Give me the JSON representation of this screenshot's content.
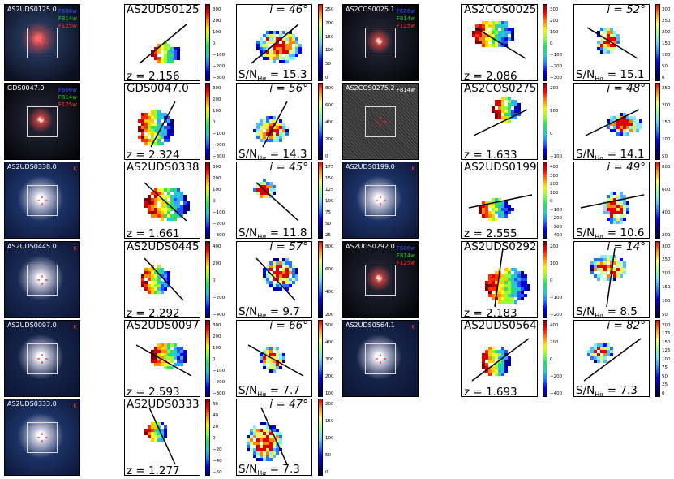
{
  "left_block": [
    {
      "id": "AS2UDS0125.0",
      "z": "z = 2.156",
      "incl": "i = 46°",
      "sn_label": "S/N",
      "sn_sub": "Hα",
      "sn_val": " = 15.3",
      "filters": [
        {
          "text": "F606w",
          "color": "#3355ff"
        },
        {
          "text": "F814w",
          "color": "#22cc22"
        },
        {
          "text": "F125w",
          "color": "#ff3333"
        }
      ],
      "vticks": [
        "300",
        "200",
        "100",
        "0",
        "−100",
        "−200",
        "−300"
      ],
      "sticks": [
        "250",
        "200",
        "150",
        "100",
        "50",
        "0"
      ]
    },
    {
      "id": "GDS0047.0",
      "z": "z = 2.324",
      "incl": "i = 56°",
      "sn_label": "S/N",
      "sn_sub": "Hα",
      "sn_val": " = 14.3",
      "filters": [
        {
          "text": "F606w",
          "color": "#3355ff"
        },
        {
          "text": "F814w",
          "color": "#22cc22"
        },
        {
          "text": "F125w",
          "color": "#ff3333"
        }
      ],
      "vticks": [
        "300",
        "200",
        "100",
        "0",
        "−100",
        "−200",
        "−300"
      ],
      "sticks": [
        "800",
        "600",
        "400",
        "200",
        "0"
      ]
    },
    {
      "id": "AS2UDS0338.0",
      "z": "z = 1.661",
      "incl": "i = 45°",
      "sn_label": "S/N",
      "sn_sub": "Hα",
      "sn_val": " = 11.8",
      "filters": [
        {
          "text": "K",
          "color": "#ff3333"
        }
      ],
      "vticks": [
        "300",
        "200",
        "100",
        "0",
        "−100",
        "−200",
        "−300"
      ],
      "sticks": [
        "175",
        "150",
        "125",
        "100",
        "75",
        "50",
        "25"
      ]
    },
    {
      "id": "AS2UDS0445.0",
      "z": "z = 2.292",
      "incl": "i = 57°",
      "sn_label": "S/N",
      "sn_sub": "Hα",
      "sn_val": " = 9.7",
      "filters": [
        {
          "text": "K",
          "color": "#ff3333"
        }
      ],
      "vticks": [
        "400",
        "200",
        "0",
        "−200",
        "−400"
      ],
      "sticks": [
        "800",
        "600",
        "400",
        "200"
      ]
    },
    {
      "id": "AS2UDS0097.0",
      "z": "z = 2.593",
      "incl": "i = 66°",
      "sn_label": "S/N",
      "sn_sub": "Hα",
      "sn_val": " = 7.7",
      "filters": [
        {
          "text": "K",
          "color": "#ff3333"
        }
      ],
      "vticks": [
        "300",
        "200",
        "100",
        "0",
        "−100",
        "−200",
        "−300"
      ],
      "sticks": [
        "500",
        "400",
        "300",
        "200",
        "100"
      ]
    },
    {
      "id": "AS2UDS0333.0",
      "z": "z = 1.277",
      "incl": "i = 47°",
      "sn_label": "S/N",
      "sn_sub": "Hα",
      "sn_val": " = 7.3",
      "filters": [
        {
          "text": "K",
          "color": "#ff3333"
        }
      ],
      "vticks": [
        "60",
        "40",
        "20",
        "0",
        "−20",
        "−40",
        "−60"
      ],
      "sticks": [
        "200",
        "150",
        "100",
        "50",
        "0"
      ]
    }
  ],
  "right_block": [
    {
      "id": "AS2COS0025.1",
      "z": "z = 2.086",
      "incl": "i = 52°",
      "sn_label": "S/N",
      "sn_sub": "Hα",
      "sn_val": " = 15.1",
      "filters": [
        {
          "text": "F606w",
          "color": "#3355ff"
        },
        {
          "text": "F814w",
          "color": "#22cc22"
        },
        {
          "text": "F125w",
          "color": "#ff3333"
        }
      ],
      "vticks": [
        "300",
        "200",
        "100",
        "0",
        "−100",
        "−200",
        "−300"
      ],
      "sticks": [
        "300",
        "250",
        "200",
        "150",
        "100",
        "50",
        "0"
      ]
    },
    {
      "id": "AS2COS0275.2",
      "z": "z = 1.633",
      "incl": "i = 48°",
      "sn_label": "S/N",
      "sn_sub": "Hα",
      "sn_val": " = 14.1",
      "filters": [
        {
          "text": "F814w",
          "color": "#ffffff"
        }
      ],
      "vticks": [
        "200",
        "100",
        "0",
        "−100"
      ],
      "sticks": [
        "250",
        "200",
        "150",
        "100",
        "50"
      ]
    },
    {
      "id": "AS2UDS0199.0",
      "z": "z = 2.555",
      "incl": "i = 49°",
      "sn_label": "S/N",
      "sn_sub": "Hα",
      "sn_val": " = 10.6",
      "filters": [
        {
          "text": "K",
          "color": "#ff3333"
        }
      ],
      "vticks": [
        "400",
        "300",
        "200",
        "100",
        "0",
        "−100",
        "−200",
        "−300",
        "−400"
      ],
      "sticks": [
        "800",
        "600",
        "400",
        "200"
      ]
    },
    {
      "id": "AS2UDS0292.0",
      "z": "z = 2.183",
      "incl": "i = 14°",
      "sn_label": "S/N",
      "sn_sub": "Hα",
      "sn_val": " = 8.5",
      "filters": [
        {
          "text": "F606w",
          "color": "#3355ff"
        },
        {
          "text": "F814w",
          "color": "#22cc22"
        },
        {
          "text": "F125w",
          "color": "#ff3333"
        }
      ],
      "vticks": [
        "200",
        "100",
        "0",
        "−100",
        "−200"
      ],
      "sticks": [
        "300",
        "250",
        "200",
        "150",
        "100",
        "50"
      ]
    },
    {
      "id": "AS2UDS0564.1",
      "z": "z = 1.693",
      "incl": "i = 82°",
      "sn_label": "S/N",
      "sn_sub": "Hα",
      "sn_val": " = 7.3",
      "filters": [
        {
          "text": "K",
          "color": "#ff3333"
        }
      ],
      "vticks": [
        "400",
        "200",
        "0",
        "−200",
        "−400"
      ],
      "sticks": [
        "200",
        "175",
        "150",
        "125",
        "100",
        "75",
        "50",
        "25",
        "0"
      ]
    }
  ]
}
